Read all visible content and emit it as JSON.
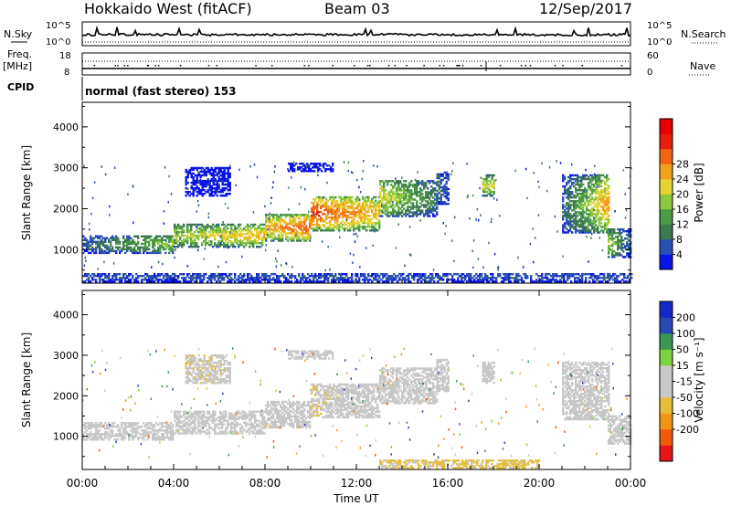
{
  "header": {
    "station": "Hokkaido West (fitACF)",
    "beam": "Beam 03",
    "date": "12/Sep/2017"
  },
  "top_panel": {
    "nsky_label": "N.Sky",
    "nsky_ticks": [
      "10^5",
      "10^0"
    ],
    "nsearch_label": "N.Search",
    "nsearch_ticks": [
      "10^5",
      "10^0"
    ],
    "freq_label": "Freq.",
    "freq_unit": "[MHz]",
    "freq_ticks": [
      "18",
      "8"
    ],
    "nave_label": "Nave",
    "nave_ticks": [
      "60",
      "0"
    ],
    "cpid_label": "CPID",
    "cpid_value": "normal (fast stereo) 153"
  },
  "colors": {
    "power": [
      "#0a14e6",
      "#2850b4",
      "#3c7850",
      "#4a9a46",
      "#8cc83c",
      "#e6d232",
      "#f0a01e",
      "#f06414",
      "#e61e0a",
      "#e60000"
    ],
    "velocity": [
      "#e61414",
      "#f05a0a",
      "#f09614",
      "#e6be3c",
      "#c8c8c8",
      "#c8c8c8",
      "#7cd23c",
      "#3c9650",
      "#284ab4",
      "#1428c8"
    ]
  },
  "chart_data": [
    {
      "type": "heatmap",
      "name": "power",
      "ylabel": "Slant Range [km]",
      "yticks": [
        1000,
        2000,
        3000,
        4000
      ],
      "ylim": [
        180,
        4600
      ],
      "colorbar_label": "Power [dB]",
      "colorbar_ticks": [
        "4",
        "8",
        "12",
        "16",
        "20",
        "24",
        "28"
      ],
      "color_range": [
        0,
        32
      ],
      "bands": [
        {
          "t0": 0.0,
          "t1": 4.0,
          "r0": 900,
          "r1": 1350,
          "start": 6,
          "end": 15
        },
        {
          "t0": 4.0,
          "t1": 8.0,
          "r0": 1050,
          "r1": 1600,
          "start": 15,
          "end": 20
        },
        {
          "t0": 8.0,
          "t1": 10.0,
          "r0": 1200,
          "r1": 1850,
          "start": 20,
          "end": 26
        },
        {
          "t0": 10.0,
          "t1": 13.0,
          "r0": 1450,
          "r1": 2300,
          "start": 26,
          "end": 20
        },
        {
          "t0": 13.0,
          "t1": 15.5,
          "r0": 1800,
          "r1": 2700,
          "start": 18,
          "end": 8
        },
        {
          "t0": 15.5,
          "t1": 16.0,
          "r0": 2100,
          "r1": 2900,
          "start": 8,
          "end": 4
        },
        {
          "t0": 4.5,
          "t1": 6.5,
          "r0": 2300,
          "r1": 3000,
          "start": 2,
          "end": 2
        },
        {
          "t0": 9.0,
          "t1": 11.0,
          "r0": 2900,
          "r1": 3100,
          "start": 2,
          "end": 2
        },
        {
          "t0": 17.5,
          "t1": 18.0,
          "r0": 2300,
          "r1": 2800,
          "start": 18,
          "end": 16
        },
        {
          "t0": 21.0,
          "t1": 23.0,
          "r0": 1400,
          "r1": 2800,
          "start": 6,
          "end": 22
        },
        {
          "t0": 23.0,
          "t1": 24.0,
          "r0": 800,
          "r1": 1500,
          "start": 16,
          "end": 4
        },
        {
          "t0": 0.0,
          "t1": 24.0,
          "r0": 200,
          "r1": 420,
          "start": 5,
          "end": 5
        }
      ]
    },
    {
      "type": "heatmap",
      "name": "velocity",
      "ylabel": "Slant Range [km]",
      "yticks": [
        1000,
        2000,
        3000,
        4000
      ],
      "ylim": [
        180,
        4600
      ],
      "xlabel": "Time UT",
      "xticks": [
        "00:00",
        "04:00",
        "08:00",
        "12:00",
        "16:00",
        "20:00",
        "00:00"
      ],
      "xlim": [
        0,
        24
      ],
      "colorbar_label": "Velocity [m s⁻¹]",
      "colorbar_ticks": [
        "200",
        "100",
        "50",
        "15",
        "-15",
        "-50",
        "-100",
        "-200"
      ],
      "color_range": [
        -250,
        250
      ],
      "bands": [
        {
          "t0": 0.0,
          "t1": 4.0,
          "r0": 900,
          "r1": 1350,
          "start": 0,
          "end": -10
        },
        {
          "t0": 4.0,
          "t1": 8.0,
          "r0": 1050,
          "r1": 1600,
          "start": -10,
          "end": -20
        },
        {
          "t0": 8.0,
          "t1": 10.0,
          "r0": 1200,
          "r1": 1850,
          "start": -20,
          "end": -35
        },
        {
          "t0": 10.0,
          "t1": 13.0,
          "r0": 1450,
          "r1": 2300,
          "start": -45,
          "end": -20
        },
        {
          "t0": 13.0,
          "t1": 15.5,
          "r0": 1800,
          "r1": 2700,
          "start": -10,
          "end": -5
        },
        {
          "t0": 15.5,
          "t1": 16.0,
          "r0": 2100,
          "r1": 2900,
          "start": -5,
          "end": 0
        },
        {
          "t0": 4.5,
          "t1": 6.5,
          "r0": 2300,
          "r1": 3000,
          "start": -40,
          "end": -40
        },
        {
          "t0": 9.0,
          "t1": 11.0,
          "r0": 2900,
          "r1": 3100,
          "start": -30,
          "end": -30
        },
        {
          "t0": 17.5,
          "t1": 18.0,
          "r0": 2300,
          "r1": 2800,
          "start": 0,
          "end": 0
        },
        {
          "t0": 21.0,
          "t1": 23.0,
          "r0": 1400,
          "r1": 2800,
          "start": 20,
          "end": 5
        },
        {
          "t0": 23.0,
          "t1": 24.0,
          "r0": 800,
          "r1": 1500,
          "start": 5,
          "end": 0
        },
        {
          "t0": 13.0,
          "t1": 20.0,
          "r0": 200,
          "r1": 420,
          "start": -50,
          "end": -60
        }
      ]
    }
  ]
}
